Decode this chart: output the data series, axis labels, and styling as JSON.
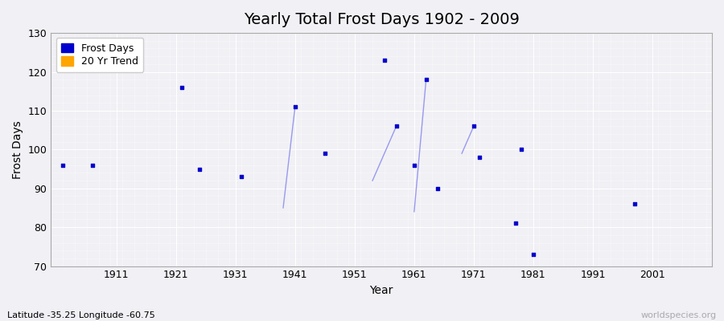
{
  "title": "Yearly Total Frost Days 1902 - 2009",
  "xlabel": "Year",
  "ylabel": "Frost Days",
  "xlim": [
    1900,
    2011
  ],
  "ylim": [
    70,
    130
  ],
  "yticks": [
    70,
    80,
    90,
    100,
    110,
    120,
    130
  ],
  "xticks": [
    1911,
    1921,
    1931,
    1941,
    1951,
    1961,
    1971,
    1981,
    1991,
    2001
  ],
  "bg_color": "#f0f0f5",
  "plot_bg_color": "#f0f0f5",
  "frost_color": "#0000cc",
  "trend_color": "#9999ee",
  "frost_days_x": [
    1902,
    1907,
    1922,
    1925,
    1932,
    1941,
    1946,
    1956,
    1958,
    1961,
    1963,
    1965,
    1971,
    1972,
    1978,
    1979,
    1981,
    1998
  ],
  "frost_days_y": [
    96,
    96,
    116,
    95,
    93,
    111,
    99,
    123,
    106,
    96,
    118,
    90,
    106,
    98,
    81,
    100,
    73,
    86
  ],
  "trend_segments": [
    {
      "x": [
        1939,
        1941
      ],
      "y": [
        85,
        111
      ]
    },
    {
      "x": [
        1954,
        1958
      ],
      "y": [
        92,
        106
      ]
    },
    {
      "x": [
        1961,
        1963
      ],
      "y": [
        84,
        118
      ]
    },
    {
      "x": [
        1969,
        1971
      ],
      "y": [
        99,
        106
      ]
    }
  ],
  "annotation_subtitle": "Latitude -35.25 Longitude -60.75",
  "watermark": "worldspecies.org",
  "title_fontsize": 14,
  "axis_fontsize": 10,
  "tick_fontsize": 9,
  "legend_fontsize": 9,
  "marker_size": 8
}
